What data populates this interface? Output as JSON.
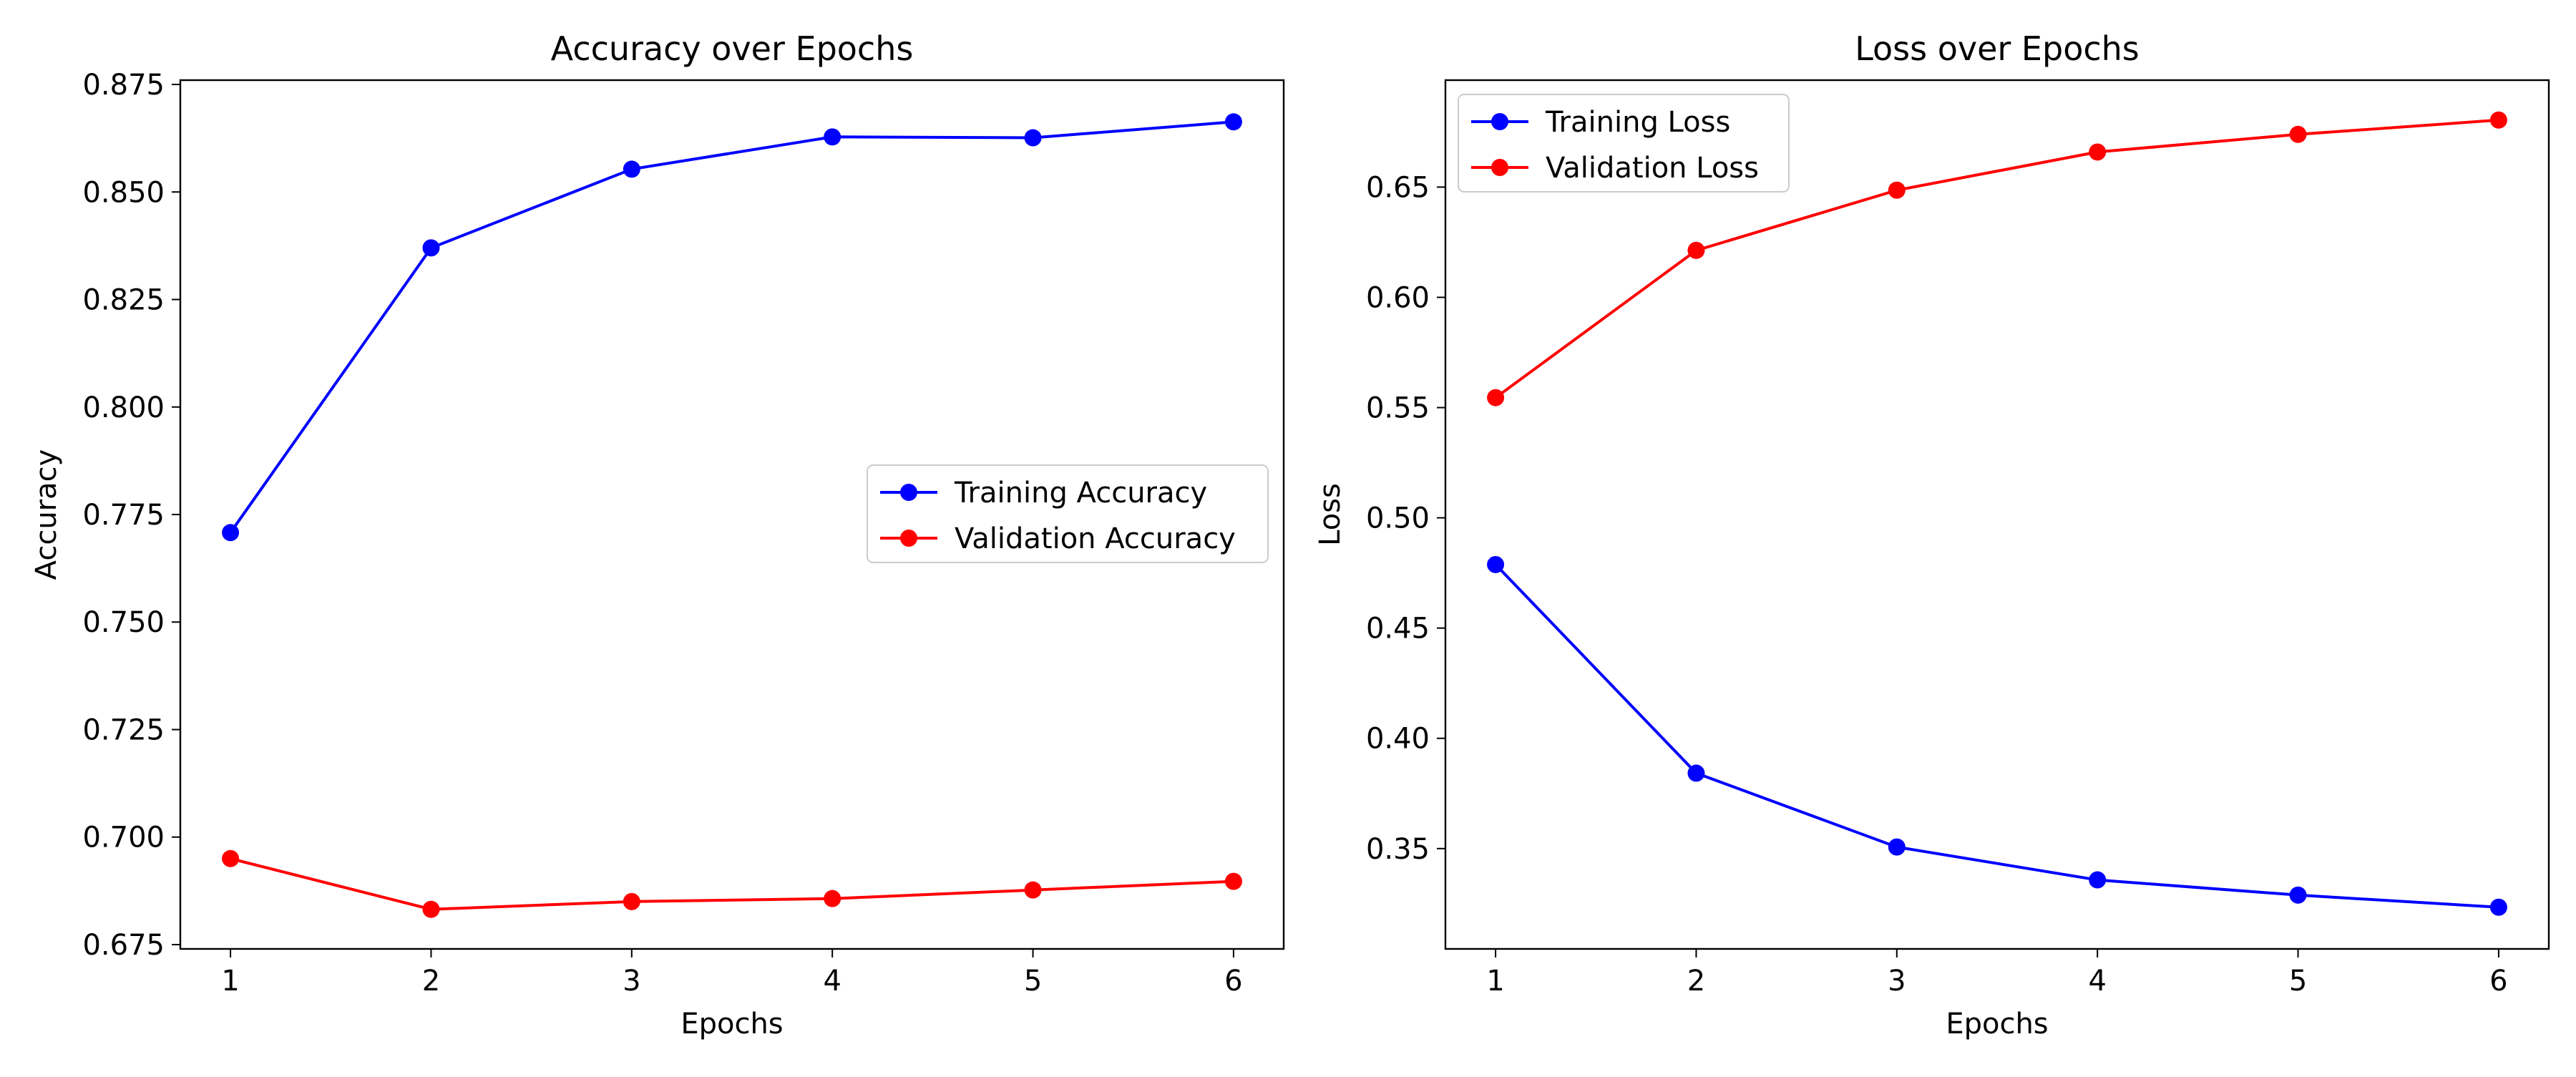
{
  "chart_data": [
    {
      "type": "line",
      "title": "Accuracy over Epochs",
      "xlabel": "Epochs",
      "ylabel": "Accuracy",
      "x": [
        1,
        2,
        3,
        4,
        5,
        6
      ],
      "xlim": [
        0.75,
        6.25
      ],
      "ylim": [
        0.674,
        0.876
      ],
      "xticks": [
        1,
        2,
        3,
        4,
        5,
        6
      ],
      "yticks": [
        0.675,
        0.7,
        0.725,
        0.75,
        0.775,
        0.8,
        0.825,
        0.85,
        0.875
      ],
      "ytick_labels": [
        "0.675",
        "0.700",
        "0.725",
        "0.750",
        "0.775",
        "0.800",
        "0.825",
        "0.850",
        "0.875"
      ],
      "grid": false,
      "legend_position": "center-right",
      "series": [
        {
          "name": "Training Accuracy",
          "color": "#0000ff",
          "values": [
            0.7708,
            0.837,
            0.8553,
            0.8628,
            0.8626,
            0.8663
          ]
        },
        {
          "name": "Validation Accuracy",
          "color": "#ff0000",
          "values": [
            0.695,
            0.6832,
            0.685,
            0.6857,
            0.6877,
            0.6897
          ]
        }
      ]
    },
    {
      "type": "line",
      "title": "Loss over Epochs",
      "xlabel": "Epochs",
      "ylabel": "Loss",
      "x": [
        1,
        2,
        3,
        4,
        5,
        6
      ],
      "xlim": [
        0.75,
        6.25
      ],
      "ylim": [
        0.3045,
        0.6985
      ],
      "xticks": [
        1,
        2,
        3,
        4,
        5,
        6
      ],
      "yticks": [
        0.35,
        0.4,
        0.45,
        0.5,
        0.55,
        0.6,
        0.65
      ],
      "ytick_labels": [
        "0.35",
        "0.40",
        "0.45",
        "0.50",
        "0.55",
        "0.60",
        "0.65"
      ],
      "grid": false,
      "legend_position": "upper-left",
      "series": [
        {
          "name": "Training Loss",
          "color": "#0000ff",
          "values": [
            0.4788,
            0.3842,
            0.3507,
            0.3358,
            0.3289,
            0.3234
          ]
        },
        {
          "name": "Validation Loss",
          "color": "#ff0000",
          "values": [
            0.5545,
            0.6213,
            0.6486,
            0.6659,
            0.6739,
            0.6804
          ]
        }
      ]
    }
  ]
}
